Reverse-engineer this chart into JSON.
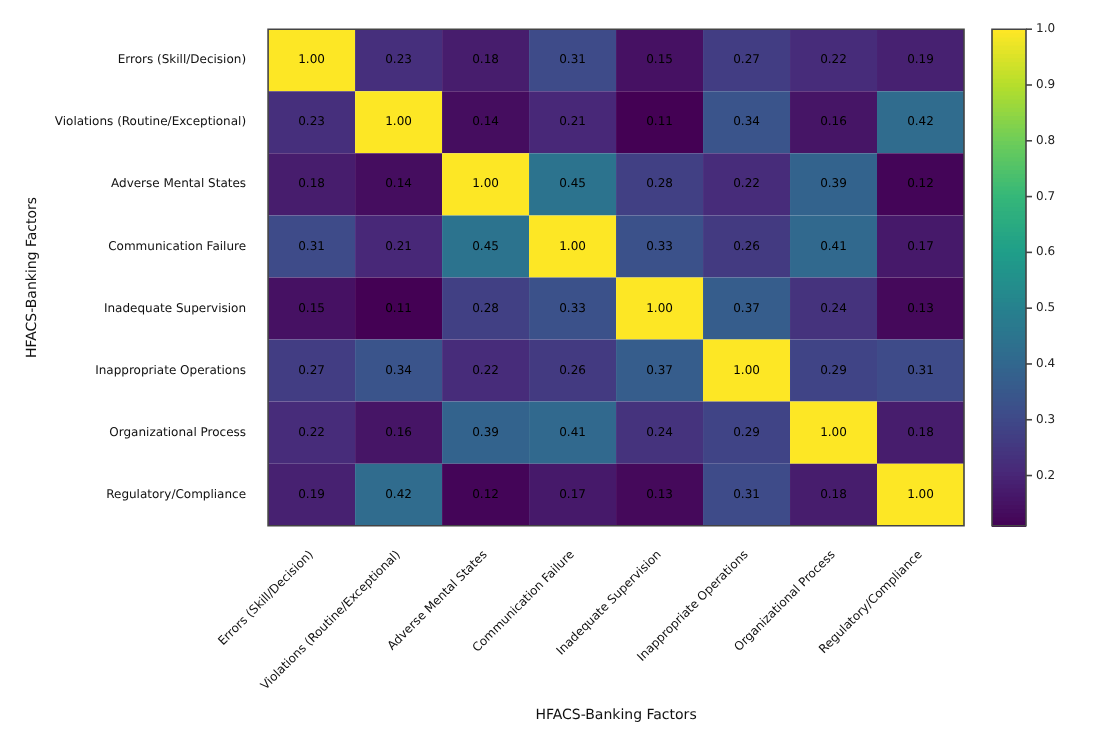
{
  "chart_data": {
    "type": "heatmap",
    "xlabel": "HFACS-Banking Factors",
    "ylabel": "HFACS-Banking Factors",
    "categories": [
      "Errors (Skill/Decision)",
      "Violations (Routine/Exceptional)",
      "Adverse Mental States",
      "Communication Failure",
      "Inadequate Supervision",
      "Inappropriate Operations",
      "Organizational Process",
      "Regulatory/Compliance"
    ],
    "y_categories": [
      "Errors (Skill/Decision)",
      "Violations (Routine/Exceptional)",
      "Adverse Mental States",
      "Communication Failure",
      "Inadequate Supervision",
      "Inappropriate Operations",
      "Organizational Process",
      "Regulatory/Compliance"
    ],
    "cells": [
      [
        1.0,
        0.23,
        0.18,
        0.31,
        0.15,
        0.27,
        0.22,
        0.19
      ],
      [
        0.23,
        1.0,
        0.14,
        0.21,
        0.11,
        0.34,
        0.16,
        0.42
      ],
      [
        0.18,
        0.14,
        1.0,
        0.45,
        0.28,
        0.22,
        0.39,
        0.12
      ],
      [
        0.31,
        0.21,
        0.45,
        1.0,
        0.33,
        0.26,
        0.41,
        0.17
      ],
      [
        0.15,
        0.11,
        0.28,
        0.33,
        1.0,
        0.37,
        0.24,
        0.13
      ],
      [
        0.27,
        0.34,
        0.22,
        0.26,
        0.37,
        1.0,
        0.29,
        0.31
      ],
      [
        0.22,
        0.16,
        0.39,
        0.41,
        0.24,
        0.29,
        1.0,
        0.18
      ],
      [
        0.19,
        0.42,
        0.12,
        0.17,
        0.13,
        0.31,
        0.18,
        1.0
      ]
    ],
    "cell_labels": [
      [
        "1.00",
        "0.23",
        "0.18",
        "0.31",
        "0.15",
        "0.27",
        "0.22",
        "0.19"
      ],
      [
        "0.23",
        "1.00",
        "0.14",
        "0.21",
        "0.11",
        "0.34",
        "0.16",
        "0.42"
      ],
      [
        "0.18",
        "0.14",
        "1.00",
        "0.45",
        "0.28",
        "0.22",
        "0.39",
        "0.12"
      ],
      [
        "0.31",
        "0.21",
        "0.45",
        "1.00",
        "0.33",
        "0.26",
        "0.41",
        "0.17"
      ],
      [
        "0.15",
        "0.11",
        "0.28",
        "0.33",
        "1.00",
        "0.37",
        "0.24",
        "0.13"
      ],
      [
        "0.27",
        "0.34",
        "0.22",
        "0.26",
        "0.37",
        "1.00",
        "0.29",
        "0.31"
      ],
      [
        "0.22",
        "0.16",
        "0.39",
        "0.41",
        "0.24",
        "0.29",
        "1.00",
        "0.18"
      ],
      [
        "0.19",
        "0.42",
        "0.12",
        "0.17",
        "0.13",
        "0.31",
        "0.18",
        "1.00"
      ]
    ],
    "clim": [
      0.11,
      1.0
    ],
    "cticks": [
      0.2,
      0.3,
      0.4,
      0.5,
      0.6,
      0.7,
      0.8,
      0.9,
      {
        "value": 1,
        "label": "1.0"
      }
    ]
  }
}
